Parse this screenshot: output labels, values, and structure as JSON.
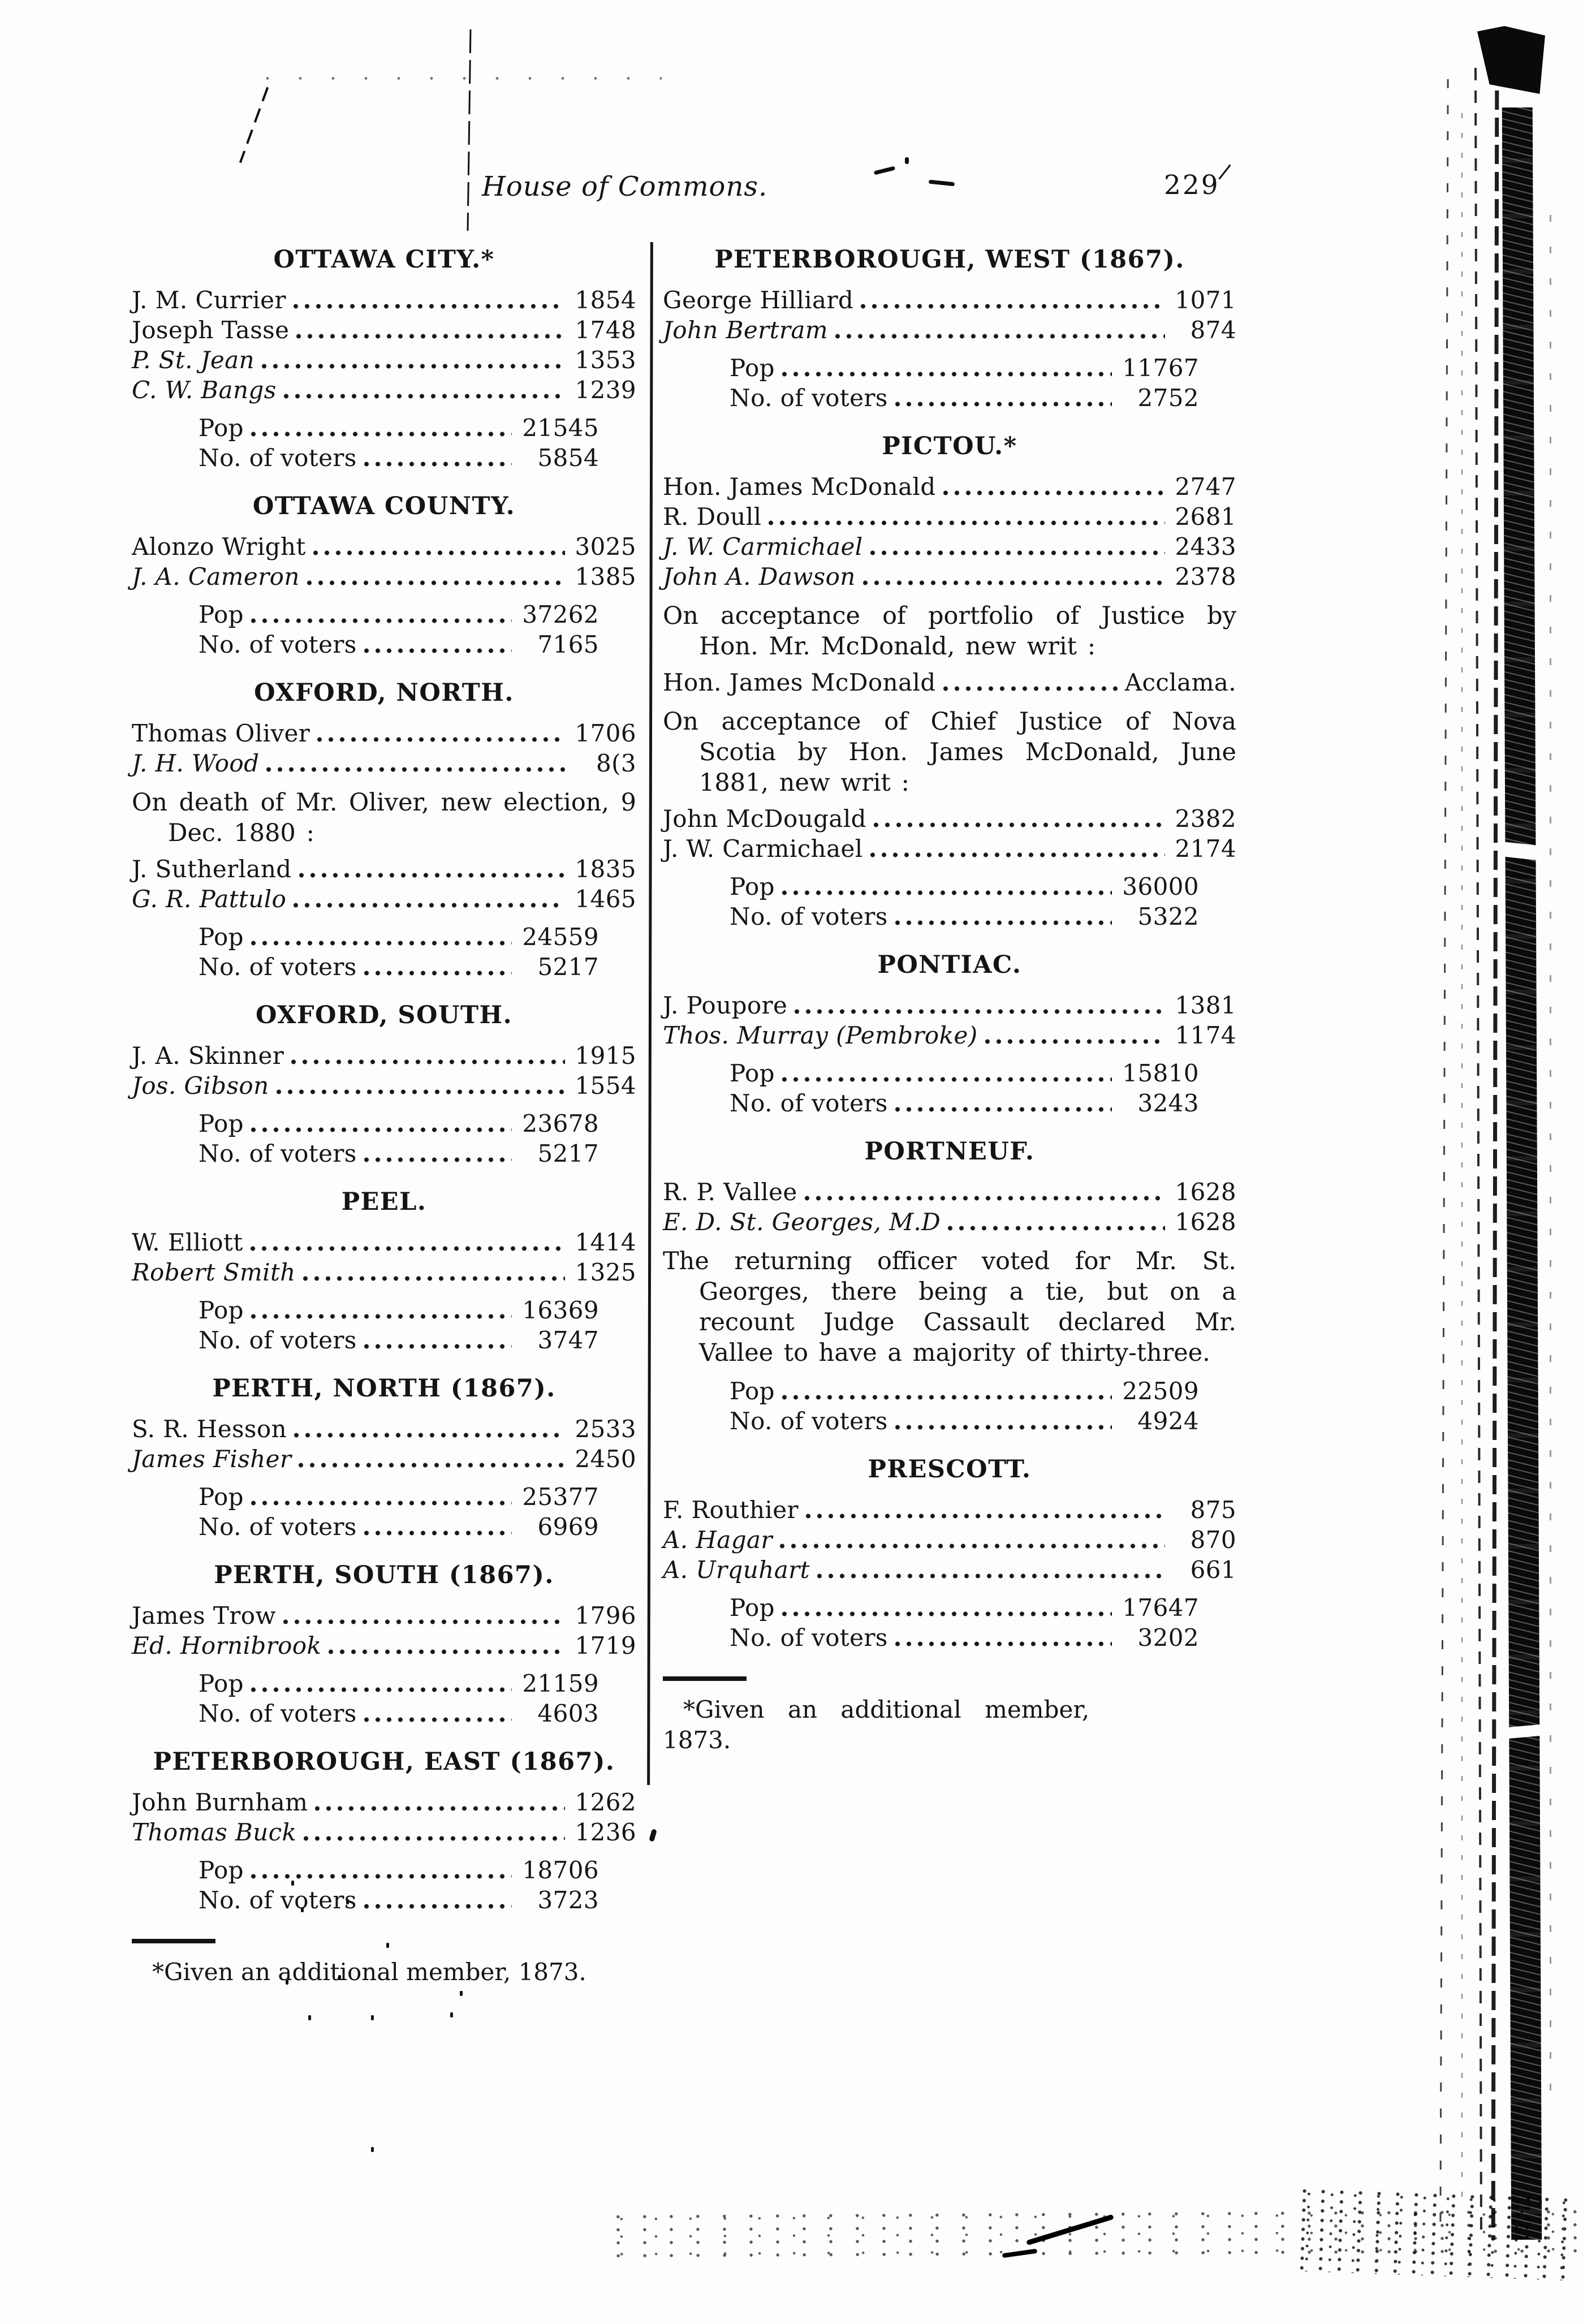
{
  "header": {
    "title": "House of Commons.",
    "page_number": "229"
  },
  "colors": {
    "ink": "#141414",
    "paper": "#fdfdfc"
  },
  "columns": [
    {
      "sections": [
        {
          "title": "OTTAWA CITY.*",
          "rows": [
            {
              "t": "cand",
              "name": "J. M. Currier",
              "value": "1854"
            },
            {
              "t": "cand",
              "name": "Joseph Tasse",
              "value": "1748"
            },
            {
              "t": "cand",
              "name": "P. St. Jean",
              "value": "1353",
              "italic": true
            },
            {
              "t": "cand",
              "name": "C. W. Bangs",
              "value": "1239",
              "italic": true
            },
            {
              "t": "stat",
              "label": "Pop",
              "value": "21545"
            },
            {
              "t": "stat",
              "label": "No. of voters",
              "value": "5854"
            }
          ]
        },
        {
          "title": "OTTAWA COUNTY.",
          "rows": [
            {
              "t": "cand",
              "name": "Alonzo Wright",
              "value": "3025"
            },
            {
              "t": "cand",
              "name": "J. A. Cameron",
              "value": "1385",
              "italic": true
            },
            {
              "t": "stat",
              "label": "Pop",
              "value": "37262"
            },
            {
              "t": "stat",
              "label": "No. of voters",
              "value": "7165"
            }
          ]
        },
        {
          "title": "OXFORD, NORTH.",
          "rows": [
            {
              "t": "cand",
              "name": "Thomas Oliver",
              "value": "1706"
            },
            {
              "t": "cand",
              "name": "J. H. Wood",
              "value": "8(3",
              "italic": true
            },
            {
              "t": "note",
              "text": "On death of Mr. Oliver, new election, 9 Dec. 1880 :"
            },
            {
              "t": "cand",
              "name": "J. Sutherland",
              "value": "1835"
            },
            {
              "t": "cand",
              "name": "G. R. Pattulo",
              "value": "1465",
              "italic": true
            },
            {
              "t": "stat",
              "label": "Pop",
              "value": "24559"
            },
            {
              "t": "stat",
              "label": "No. of voters",
              "value": "5217"
            }
          ]
        },
        {
          "title": "OXFORD, SOUTH.",
          "rows": [
            {
              "t": "cand",
              "name": "J. A. Skinner",
              "value": "1915"
            },
            {
              "t": "cand",
              "name": "Jos. Gibson",
              "value": "1554",
              "italic": true
            },
            {
              "t": "stat",
              "label": "Pop",
              "value": "23678"
            },
            {
              "t": "stat",
              "label": "No. of voters",
              "value": "5217"
            }
          ]
        },
        {
          "title": "PEEL.",
          "rows": [
            {
              "t": "cand",
              "name": "W. Elliott",
              "value": "1414"
            },
            {
              "t": "cand",
              "name": "Robert Smith",
              "value": "1325",
              "italic": true
            },
            {
              "t": "stat",
              "label": "Pop",
              "value": "16369"
            },
            {
              "t": "stat",
              "label": "No. of voters",
              "value": "3747"
            }
          ]
        },
        {
          "title": "PERTH, NORTH (1867).",
          "rows": [
            {
              "t": "cand",
              "name": "S. R. Hesson",
              "value": "2533"
            },
            {
              "t": "cand",
              "name": "James Fisher",
              "value": "2450",
              "italic": true
            },
            {
              "t": "stat",
              "label": "Pop",
              "value": "25377"
            },
            {
              "t": "stat",
              "label": "No. of voters",
              "value": "6969"
            }
          ]
        },
        {
          "title": "PERTH, SOUTH (1867).",
          "rows": [
            {
              "t": "cand",
              "name": "James Trow",
              "value": "1796"
            },
            {
              "t": "cand",
              "name": "Ed. Hornibrook",
              "value": "1719",
              "italic": true
            },
            {
              "t": "stat",
              "label": "Pop",
              "value": "21159"
            },
            {
              "t": "stat",
              "label": "No. of voters",
              "value": "4603"
            }
          ]
        },
        {
          "title": "PETERBOROUGH, EAST (1867).",
          "rows": [
            {
              "t": "cand",
              "name": "John Burnham",
              "value": "1262"
            },
            {
              "t": "cand",
              "name": "Thomas Buck",
              "value": "1236",
              "italic": true
            },
            {
              "t": "stat",
              "label": "Pop",
              "value": "18706"
            },
            {
              "t": "stat",
              "label": "No. of voters",
              "value": "3723"
            }
          ]
        }
      ],
      "footnote": {
        "lines": [
          "*Given an additional member, 1873."
        ]
      }
    },
    {
      "sections": [
        {
          "title": "PETERBOROUGH, WEST (1867).",
          "rows": [
            {
              "t": "cand",
              "name": "George Hilliard",
              "value": "1071"
            },
            {
              "t": "cand",
              "name": "John Bertram",
              "value": "874",
              "italic": true
            },
            {
              "t": "stat",
              "label": "Pop",
              "value": "11767"
            },
            {
              "t": "stat",
              "label": "No. of voters",
              "value": "2752"
            }
          ]
        },
        {
          "title": "PICTOU.*",
          "rows": [
            {
              "t": "cand",
              "name": "Hon. James McDonald",
              "value": "2747"
            },
            {
              "t": "cand",
              "name": "R. Doull",
              "value": "2681"
            },
            {
              "t": "cand",
              "name": "J. W. Carmichael",
              "value": "2433",
              "italic": true
            },
            {
              "t": "cand",
              "name": "John A. Dawson",
              "value": "2378",
              "italic": true
            },
            {
              "t": "note",
              "text": "On acceptance of portfolio of Justice by Hon. Mr. McDonald, new writ :"
            },
            {
              "t": "cand",
              "name": "Hon. James McDonald",
              "value": "Acclama."
            },
            {
              "t": "note",
              "text": "On acceptance of Chief Justice of Nova Scotia by Hon. James McDonald, June 1881, new writ :"
            },
            {
              "t": "cand",
              "name": "John McDougald",
              "value": "2382"
            },
            {
              "t": "cand",
              "name": "J. W. Carmichael",
              "value": "2174"
            },
            {
              "t": "stat",
              "label": "Pop",
              "value": "36000"
            },
            {
              "t": "stat",
              "label": "No. of voters",
              "value": "5322"
            }
          ]
        },
        {
          "title": "PONTIAC.",
          "rows": [
            {
              "t": "cand",
              "name": "J. Poupore",
              "value": "1381"
            },
            {
              "t": "cand",
              "name": "Thos. Murray (Pembroke)",
              "value": "1174",
              "italic": true
            },
            {
              "t": "stat",
              "label": "Pop",
              "value": "15810"
            },
            {
              "t": "stat",
              "label": "No. of voters",
              "value": "3243"
            }
          ]
        },
        {
          "title": "PORTNEUF.",
          "rows": [
            {
              "t": "cand",
              "name": "R. P. Vallee",
              "value": "1628"
            },
            {
              "t": "cand",
              "name": "E. D. St. Georges, M.D",
              "value": "1628",
              "italic": true
            },
            {
              "t": "note",
              "text": "The returning officer voted for Mr. St. Georges, there being a tie, but on a recount Judge Cassault declared Mr. Vallee to have a majority of thirty-three."
            },
            {
              "t": "stat",
              "label": "Pop",
              "value": "22509"
            },
            {
              "t": "stat",
              "label": "No. of voters",
              "value": "4924"
            }
          ]
        },
        {
          "title": "PRESCOTT.",
          "rows": [
            {
              "t": "cand",
              "name": "F. Routhier",
              "value": "875"
            },
            {
              "t": "cand",
              "name": "A. Hagar",
              "value": "870",
              "italic": true
            },
            {
              "t": "cand",
              "name": "A. Urquhart",
              "value": "661",
              "italic": true
            },
            {
              "t": "stat",
              "label": "Pop",
              "value": "17647"
            },
            {
              "t": "stat",
              "label": "No. of voters",
              "value": "3202"
            }
          ]
        }
      ],
      "footnote": {
        "lines": [
          "*Given an additional member,",
          "1873."
        ]
      }
    }
  ]
}
